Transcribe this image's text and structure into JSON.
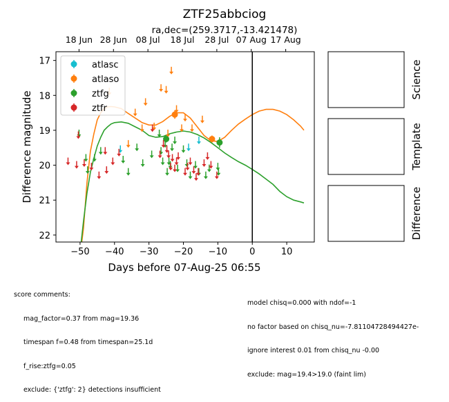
{
  "chart_data": {
    "type": "scatter",
    "title": "ZTF25abbciog",
    "subtitle": "ra,dec=(259.3717,-13.421478)",
    "xlabel": "Days before 07-Aug-25 06:55",
    "ylabel": "Difference magnitude",
    "xlim": [
      -57,
      18
    ],
    "ylim": [
      22.2,
      16.75
    ],
    "x_ticks": [
      -50,
      -40,
      -30,
      -20,
      -10,
      0,
      10
    ],
    "y_ticks": [
      17,
      18,
      19,
      20,
      21,
      22
    ],
    "top_axis_ticks": [
      {
        "label": "18 Jun",
        "x": -50.3
      },
      {
        "label": "28 Jun",
        "x": -40.3
      },
      {
        "label": "08 Jul",
        "x": -30.3
      },
      {
        "label": "18 Jul",
        "x": -20.3
      },
      {
        "label": "28 Jul",
        "x": -10.3
      },
      {
        "label": "07 Aug",
        "x": -0.3
      },
      {
        "label": "17 Aug",
        "x": 9.7
      }
    ],
    "vline_x": 0,
    "legend_position": "upper-left",
    "series": [
      {
        "name": "atlasc",
        "color": "#17becf",
        "limits": [
          [
            -38.3,
            19.55
          ],
          [
            -18.5,
            19.5
          ],
          [
            -15.5,
            19.3
          ]
        ],
        "detections": []
      },
      {
        "name": "atlaso",
        "color": "#ff7f0e",
        "limits": [
          [
            -41.5,
            17.9
          ],
          [
            -36,
            19.4
          ],
          [
            -34,
            18.5
          ],
          [
            -32,
            18.95
          ],
          [
            -31,
            18.2
          ],
          [
            -28.5,
            18.9
          ],
          [
            -26.5,
            17.8
          ],
          [
            -25,
            17.85
          ],
          [
            -23.5,
            17.3
          ],
          [
            -24.5,
            19.1
          ],
          [
            -22,
            18.4
          ],
          [
            -20.5,
            18.95
          ],
          [
            -19.5,
            18.65
          ],
          [
            -17.5,
            18.95
          ],
          [
            -14.5,
            18.7
          ]
        ],
        "detections": [
          [
            -22.5,
            18.55,
            0.12
          ],
          [
            -11.7,
            19.25,
            0.1
          ]
        ]
      },
      {
        "name": "ztfg",
        "color": "#2ca02c",
        "limits": [
          [
            -50.3,
            19.1
          ],
          [
            -48.3,
            19.8
          ],
          [
            -47.8,
            20.15
          ],
          [
            -45.8,
            19.8
          ],
          [
            -44,
            19.6
          ],
          [
            -37.5,
            19.85
          ],
          [
            -36,
            20.2
          ],
          [
            -33.5,
            19.5
          ],
          [
            -31.8,
            19.95
          ],
          [
            -29.2,
            19.7
          ],
          [
            -27,
            19.1
          ],
          [
            -26.5,
            19.6
          ],
          [
            -26,
            19.9
          ],
          [
            -25.3,
            19.4
          ],
          [
            -24.7,
            20.2
          ],
          [
            -24.2,
            19.9
          ],
          [
            -23.8,
            20.0
          ],
          [
            -23.3,
            19.5
          ],
          [
            -22.5,
            19.3
          ],
          [
            -21.7,
            20.1
          ],
          [
            -20,
            19.55
          ],
          [
            -19,
            19.95
          ],
          [
            -18,
            20.3
          ],
          [
            -16.5,
            20.0
          ],
          [
            -15.5,
            20.2
          ],
          [
            -13.5,
            20.3
          ],
          [
            -12.5,
            20.1
          ],
          [
            -10,
            20.05
          ],
          [
            -9.8,
            20.2
          ]
        ],
        "detections": [
          [
            -25,
            19.25,
            0.1
          ],
          [
            -9.5,
            19.35,
            0.15
          ]
        ]
      },
      {
        "name": "ztfr",
        "color": "#d62728",
        "limits": [
          [
            -53.5,
            19.9
          ],
          [
            -51,
            20.0
          ],
          [
            -50.5,
            19.15
          ],
          [
            -48.8,
            19.95
          ],
          [
            -46.7,
            20.05
          ],
          [
            -44.5,
            20.3
          ],
          [
            -42.7,
            19.6
          ],
          [
            -42.3,
            20.15
          ],
          [
            -40.5,
            19.9
          ],
          [
            -38.7,
            19.65
          ],
          [
            -29,
            18.95
          ],
          [
            -26.8,
            19.7
          ],
          [
            -25.8,
            19.4
          ],
          [
            -24.8,
            19.55
          ],
          [
            -24.3,
            19.7
          ],
          [
            -23.7,
            20.05
          ],
          [
            -23.2,
            19.8
          ],
          [
            -22.5,
            20.1
          ],
          [
            -22,
            19.9
          ],
          [
            -21.5,
            19.75
          ],
          [
            -19.5,
            20.2
          ],
          [
            -18.8,
            20.05
          ],
          [
            -18,
            19.9
          ],
          [
            -17,
            20.15
          ],
          [
            -16.3,
            20.35
          ],
          [
            -15.7,
            20.2
          ],
          [
            -14,
            19.95
          ],
          [
            -13,
            19.75
          ],
          [
            -12,
            20.0
          ],
          [
            -10.3,
            20.3
          ]
        ],
        "detections": []
      }
    ],
    "model_curves": [
      {
        "name": "model-r",
        "color": "#ff7f0e",
        "points": [
          [
            -50,
            22.6
          ],
          [
            -49,
            21.8
          ],
          [
            -48,
            20.5
          ],
          [
            -47,
            19.6
          ],
          [
            -46,
            19.1
          ],
          [
            -45,
            18.7
          ],
          [
            -44,
            18.5
          ],
          [
            -43,
            18.38
          ],
          [
            -42,
            18.33
          ],
          [
            -41,
            18.32
          ],
          [
            -40,
            18.33
          ],
          [
            -38,
            18.38
          ],
          [
            -36,
            18.52
          ],
          [
            -34,
            18.65
          ],
          [
            -32,
            18.78
          ],
          [
            -30,
            18.85
          ],
          [
            -28,
            18.85
          ],
          [
            -26,
            18.75
          ],
          [
            -24,
            18.6
          ],
          [
            -22,
            18.5
          ],
          [
            -20,
            18.5
          ],
          [
            -18,
            18.65
          ],
          [
            -16,
            18.9
          ],
          [
            -14,
            19.15
          ],
          [
            -12,
            19.3
          ],
          [
            -10,
            19.32
          ],
          [
            -8,
            19.2
          ],
          [
            -6,
            19.0
          ],
          [
            -4,
            18.82
          ],
          [
            -2,
            18.68
          ],
          [
            0,
            18.55
          ],
          [
            2,
            18.45
          ],
          [
            4,
            18.4
          ],
          [
            6,
            18.4
          ],
          [
            8,
            18.45
          ],
          [
            10,
            18.55
          ],
          [
            12,
            18.7
          ],
          [
            14,
            18.88
          ],
          [
            15,
            19.0
          ]
        ]
      },
      {
        "name": "model-g",
        "color": "#2ca02c",
        "points": [
          [
            -50,
            22.5
          ],
          [
            -49,
            21.6
          ],
          [
            -48,
            20.8
          ],
          [
            -47,
            20.2
          ],
          [
            -46,
            19.8
          ],
          [
            -45,
            19.45
          ],
          [
            -44,
            19.2
          ],
          [
            -43,
            19.0
          ],
          [
            -42,
            18.9
          ],
          [
            -41,
            18.82
          ],
          [
            -40,
            18.78
          ],
          [
            -38,
            18.76
          ],
          [
            -36,
            18.8
          ],
          [
            -34,
            18.9
          ],
          [
            -32,
            19.0
          ],
          [
            -30,
            19.15
          ],
          [
            -28,
            19.2
          ],
          [
            -26,
            19.18
          ],
          [
            -24,
            19.1
          ],
          [
            -22,
            19.05
          ],
          [
            -20,
            19.02
          ],
          [
            -18,
            19.05
          ],
          [
            -16,
            19.12
          ],
          [
            -14,
            19.22
          ],
          [
            -12,
            19.35
          ],
          [
            -10,
            19.5
          ],
          [
            -8,
            19.65
          ],
          [
            -6,
            19.78
          ],
          [
            -4,
            19.9
          ],
          [
            -2,
            20.0
          ],
          [
            0,
            20.12
          ],
          [
            2,
            20.25
          ],
          [
            4,
            20.4
          ],
          [
            6,
            20.55
          ],
          [
            8,
            20.75
          ],
          [
            10,
            20.9
          ],
          [
            12,
            21.0
          ],
          [
            14,
            21.05
          ],
          [
            15,
            21.08
          ]
        ]
      }
    ],
    "side_panels": [
      "Science",
      "Template",
      "Difference"
    ]
  },
  "comments_left": {
    "header": "score comments:",
    "lines": [
      "mag_factor=0.37 from mag=19.36",
      "timespan f=0.48 from timespan=25.1d",
      "f_rise:ztfg=0.05",
      "exclude: {'ztfg': 2} detections insufficient"
    ]
  },
  "comments_right": {
    "lines": [
      "model chisq=0.000 with ndof=-1",
      "no factor based on chisq_nu=-7.81104728494427e-",
      "ignore interest 0.01 from chisq_nu -0.00",
      "exclude: mag=19.4>19.0 (faint lim)"
    ]
  }
}
